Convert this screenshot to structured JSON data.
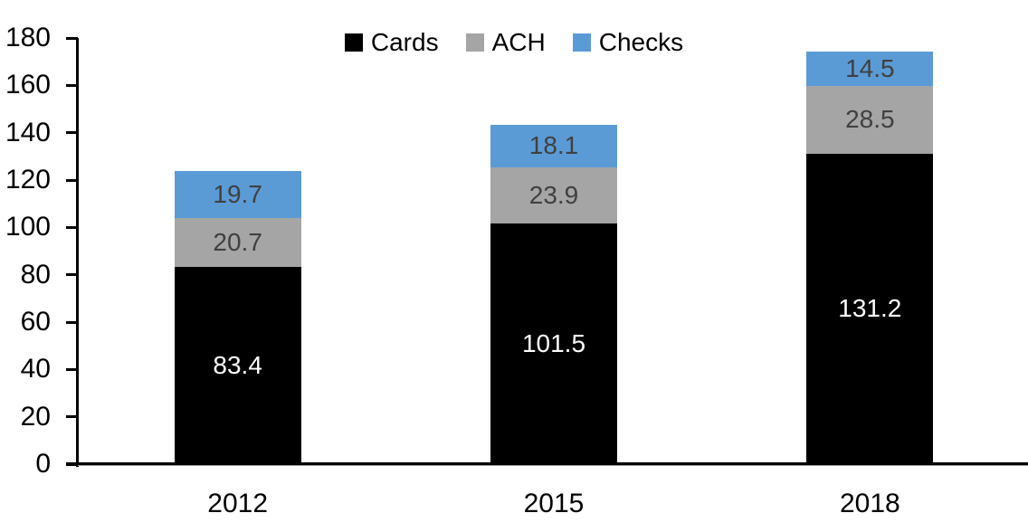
{
  "chart_data": {
    "type": "bar",
    "stacked": true,
    "title": "",
    "xlabel": "",
    "ylabel": "",
    "categories": [
      "2012",
      "2015",
      "2018"
    ],
    "series": [
      {
        "name": "Cards",
        "values": [
          83.4,
          101.5,
          131.2
        ],
        "color": "#000000",
        "label_color": "#ffffff"
      },
      {
        "name": "ACH",
        "values": [
          20.7,
          23.9,
          28.5
        ],
        "color": "#a5a5a5",
        "label_color": "#404040"
      },
      {
        "name": "Checks",
        "values": [
          19.7,
          18.1,
          14.5
        ],
        "color": "#5b9bd5",
        "label_color": "#404040"
      }
    ],
    "totals": [
      123.8,
      143.5,
      174.2
    ],
    "ylim": [
      0,
      180
    ],
    "yticks": [
      0,
      20,
      40,
      60,
      80,
      100,
      120,
      140,
      160,
      180
    ],
    "grid": false,
    "legend_position": "top-center",
    "axis_color": "#000000",
    "background_color": "#ffffff"
  }
}
